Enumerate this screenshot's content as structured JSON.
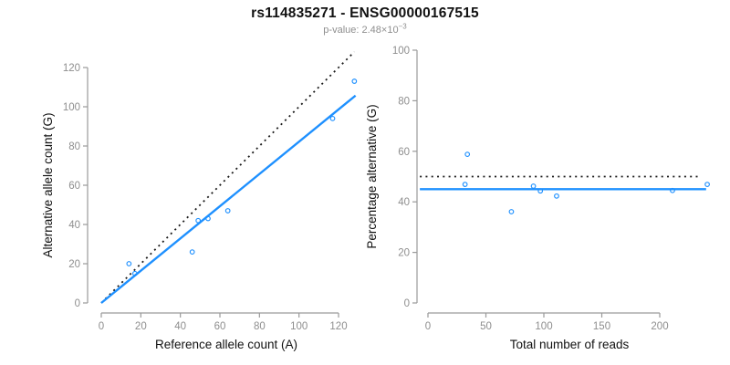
{
  "title": "rs114835271 - ENSG00000167515",
  "subtitle": {
    "text": "p-value: 2.48×10",
    "exponent": "−3"
  },
  "colors": {
    "accent_blue": "#1E90FF",
    "line_black": "#1a1a1a",
    "axis_gray": "#9a9a9a",
    "tick_label_gray": "#8e8e8e",
    "axis_title_color": "#111111",
    "background": "#ffffff"
  },
  "chart_data": [
    {
      "id": "allele-counts",
      "type": "scatter",
      "xlabel": "Reference allele count (A)",
      "ylabel": "Alternative allele count (G)",
      "xlim": [
        0,
        129
      ],
      "ylim": [
        0,
        129
      ],
      "xticks": [
        0,
        20,
        40,
        60,
        80,
        100,
        120
      ],
      "yticks": [
        0,
        20,
        40,
        60,
        80,
        100,
        120
      ],
      "grid": false,
      "legend": "none",
      "points": [
        [
          14,
          20
        ],
        [
          17,
          15
        ],
        [
          46,
          26
        ],
        [
          49,
          42
        ],
        [
          54,
          43
        ],
        [
          64,
          47
        ],
        [
          117,
          94
        ],
        [
          128,
          113
        ]
      ],
      "lines": [
        {
          "name": "identity-line",
          "style": "dotted",
          "color": "black",
          "from": [
            0,
            0
          ],
          "to": [
            128,
            128
          ]
        },
        {
          "name": "fit-line",
          "style": "solid",
          "color": "blue",
          "slope": 0.822,
          "from": [
            0,
            0
          ],
          "to": [
            128.6,
            105.7
          ]
        }
      ]
    },
    {
      "id": "percentage-alternative",
      "type": "scatter",
      "xlabel": "Total number of reads",
      "ylabel": "Percentage alternative (G)",
      "xlim": [
        0,
        250
      ],
      "ylim": [
        0,
        100
      ],
      "xticks": [
        0,
        50,
        100,
        150,
        200
      ],
      "yticks": [
        0,
        20,
        40,
        60,
        80,
        100
      ],
      "grid": false,
      "legend": "none",
      "points": [
        [
          34,
          58.8
        ],
        [
          32,
          46.9
        ],
        [
          72,
          36.1
        ],
        [
          91,
          46.2
        ],
        [
          97,
          44.3
        ],
        [
          111,
          42.3
        ],
        [
          211,
          44.5
        ],
        [
          241,
          46.9
        ]
      ],
      "lines": [
        {
          "name": "expected-50pct-line",
          "style": "dotted",
          "color": "black",
          "from": [
            -7,
            50
          ],
          "to": [
            233,
            50
          ]
        },
        {
          "name": "mean-45pct-line",
          "style": "solid",
          "color": "blue",
          "from": [
            -7,
            45
          ],
          "to": [
            240,
            45
          ]
        }
      ]
    }
  ]
}
